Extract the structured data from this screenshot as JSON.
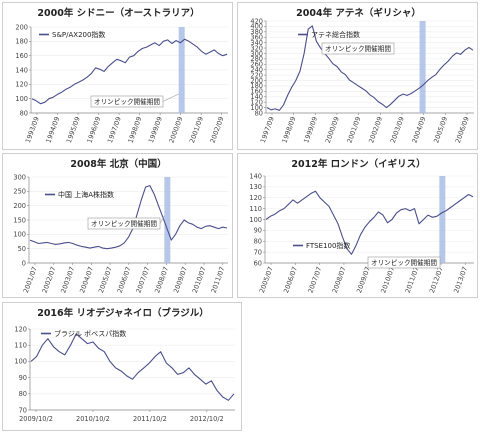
{
  "chart_data": [
    {
      "type": "line",
      "title": "2000年 シドニー（オーストラリア）",
      "legend": "S&P/AX200指数",
      "annotation": "オリンピック開催期間",
      "line_color": "#4a4f8c",
      "band_color": "#a9bde6",
      "ylim": [
        80,
        200
      ],
      "yticks": [
        80,
        100,
        120,
        140,
        160,
        180,
        200
      ],
      "x_labels": [
        "1993/09",
        "1994/09",
        "1995/09",
        "1996/09",
        "1997/09",
        "1998/09",
        "1999/09",
        "2000/09",
        "2001/09",
        "2002/09"
      ],
      "band_index": 7.05,
      "series": [
        {
          "values": [
            100,
            97,
            93,
            95,
            100,
            102,
            106,
            109,
            113,
            116,
            120,
            123,
            126,
            130,
            135,
            143,
            141,
            138,
            145,
            150,
            155,
            153,
            150,
            158,
            160,
            166,
            170,
            172,
            175,
            178,
            174,
            180,
            182,
            177,
            181,
            178,
            183,
            180,
            176,
            172,
            166,
            162,
            165,
            168,
            163,
            160,
            162
          ]
        }
      ]
    },
    {
      "type": "line",
      "title": "2004年 アテネ（ギリシャ）",
      "legend": "アテネ総合指数",
      "annotation": "オリンピック開催期間",
      "line_color": "#4a4f8c",
      "band_color": "#a9bde6",
      "ylim": [
        80,
        420
      ],
      "yticks": [
        80,
        100,
        120,
        140,
        160,
        180,
        200,
        220,
        240,
        260,
        280,
        300,
        320,
        340,
        360,
        380,
        400,
        420
      ],
      "x_labels": [
        "1997/09",
        "1998/09",
        "1999/09",
        "2000/09",
        "2001/09",
        "2002/09",
        "2003/09",
        "2004/09",
        "2005/09",
        "2006/09"
      ],
      "band_index": 6.95,
      "series": [
        {
          "values": [
            100,
            92,
            95,
            90,
            110,
            145,
            175,
            200,
            235,
            300,
            390,
            402,
            345,
            320,
            300,
            282,
            262,
            252,
            232,
            222,
            202,
            192,
            182,
            172,
            162,
            147,
            137,
            122,
            112,
            100,
            112,
            127,
            142,
            150,
            145,
            152,
            162,
            172,
            185,
            200,
            212,
            222,
            242,
            258,
            272,
            290,
            302,
            297,
            312,
            322,
            312
          ]
        }
      ]
    },
    {
      "type": "line",
      "title": "2008年 北京（中国）",
      "legend": "中国 上海A株指数",
      "annotation": "オリンピック開催期間",
      "line_color": "#4a4f8c",
      "band_color": "#a9bde6",
      "ylim": [
        0,
        300
      ],
      "yticks": [
        0,
        50,
        100,
        150,
        200,
        250,
        300
      ],
      "x_labels": [
        "2001/07",
        "2002/07",
        "2003/07",
        "2004/07",
        "2005/07",
        "2006/07",
        "2007/07",
        "2008/07",
        "2009/07",
        "2010/07",
        "2011/07"
      ],
      "band_index": 7.05,
      "series": [
        {
          "values": [
            80,
            74,
            68,
            70,
            72,
            68,
            65,
            67,
            70,
            72,
            68,
            62,
            58,
            55,
            52,
            55,
            58,
            52,
            50,
            52,
            55,
            60,
            70,
            90,
            120,
            170,
            220,
            265,
            270,
            240,
            200,
            160,
            120,
            80,
            100,
            130,
            150,
            140,
            135,
            125,
            120,
            128,
            130,
            125,
            120,
            125,
            122
          ]
        }
      ]
    },
    {
      "type": "line",
      "title": "2012年 ロンドン（イギリス）",
      "legend": "FTSE100指数",
      "annotation": "オリンピック開催期間",
      "line_color": "#4a4f8c",
      "band_color": "#a9bde6",
      "ylim": [
        60,
        140
      ],
      "yticks": [
        60,
        70,
        80,
        90,
        100,
        110,
        120,
        130,
        140
      ],
      "x_labels": [
        "2005/07",
        "2006/07",
        "2007/07",
        "2008/07",
        "2009/07",
        "2010/07",
        "2011/07",
        "2012/07",
        "2013/07"
      ],
      "band_index": 7.05,
      "series": [
        {
          "values": [
            100,
            103,
            105,
            108,
            110,
            114,
            118,
            115,
            118,
            121,
            124,
            126,
            120,
            116,
            112,
            104,
            96,
            84,
            73,
            68,
            76,
            86,
            93,
            98,
            102,
            107,
            104,
            97,
            100,
            106,
            109,
            110,
            108,
            110,
            96,
            100,
            104,
            102,
            103,
            106,
            108,
            111,
            114,
            117,
            120,
            123,
            121
          ]
        }
      ]
    },
    {
      "type": "line",
      "title": "2016年 リオデジャネイロ（ブラジル）",
      "legend": "ブラジル ボベスパ指数",
      "line_color": "#4a4f8c",
      "ylim": [
        70,
        120
      ],
      "yticks": [
        70,
        80,
        90,
        100,
        110,
        120
      ],
      "x_labels": [
        "2009/10/2",
        "2010/10/2",
        "2011/10/2",
        "2012/10/2"
      ],
      "series": [
        {
          "values": [
            100,
            103,
            110,
            114,
            109,
            106,
            104,
            110,
            117,
            114,
            111,
            112,
            108,
            106,
            100,
            96,
            94,
            91,
            89,
            93,
            96,
            99,
            103,
            106,
            99,
            96,
            92,
            93,
            96,
            92,
            89,
            86,
            88,
            82,
            78,
            76,
            80
          ]
        }
      ]
    }
  ]
}
